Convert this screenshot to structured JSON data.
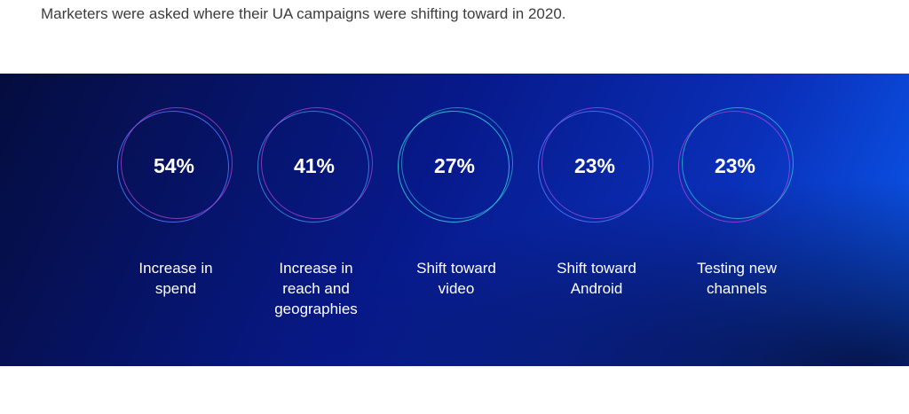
{
  "intro": "Marketers were asked where their UA campaigns were shifting toward in 2020.",
  "colors": {
    "panel_dark": "#050d3e",
    "panel_mid": "#07198a",
    "panel_light": "#0b5cf0",
    "ring_blue": "#5078ff",
    "ring_purple": "#be46dc",
    "ring_teal": "#2fd0d8"
  },
  "chart_data": {
    "type": "table",
    "unit": "%",
    "categories": [
      "Increase in\nspend",
      "Increase in\nreach and\ngeographies",
      "Shift toward\nvideo",
      "Shift toward\nAndroid",
      "Testing new\nchannels"
    ],
    "values": [
      54,
      41,
      27,
      23,
      23
    ],
    "value_labels": [
      "54%",
      "41%",
      "27%",
      "23%",
      "23%"
    ]
  }
}
